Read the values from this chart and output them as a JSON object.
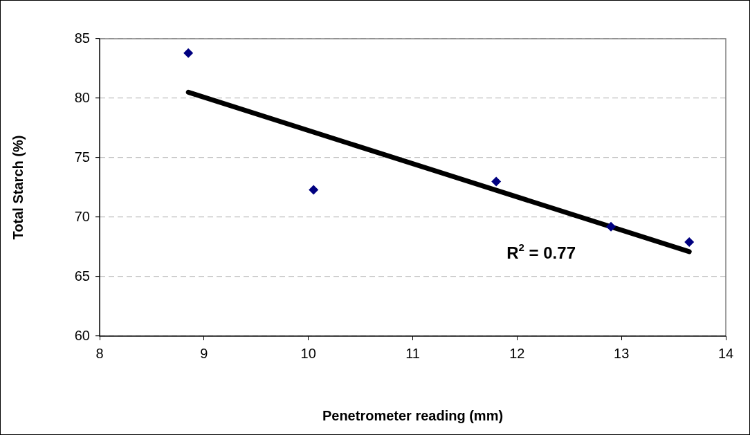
{
  "chart_data": {
    "type": "scatter",
    "xlabel": "Penetrometer reading (mm)",
    "ylabel": "Total Starch (%)",
    "xlim": [
      8,
      14
    ],
    "xticks": [
      8,
      9,
      10,
      11,
      12,
      13,
      14
    ],
    "ylim": [
      60,
      85
    ],
    "yticks": [
      60,
      65,
      70,
      75,
      80,
      85
    ],
    "grid": "y",
    "legend": false,
    "annotations": [
      "R$^{2}$ = 0.77"
    ],
    "series": [
      {
        "color": "#000080",
        "marker": "diamond",
        "x": [
          8.85,
          10.05,
          11.8,
          12.9,
          13.65
        ],
        "values": [
          83.8,
          72.3,
          73.0,
          69.2,
          67.9
        ]
      },
      {
        "type": "line",
        "color": "#000000",
        "marker": "none",
        "x": [
          8.85,
          13.65
        ],
        "values": [
          80.5,
          67.1
        ]
      }
    ]
  }
}
